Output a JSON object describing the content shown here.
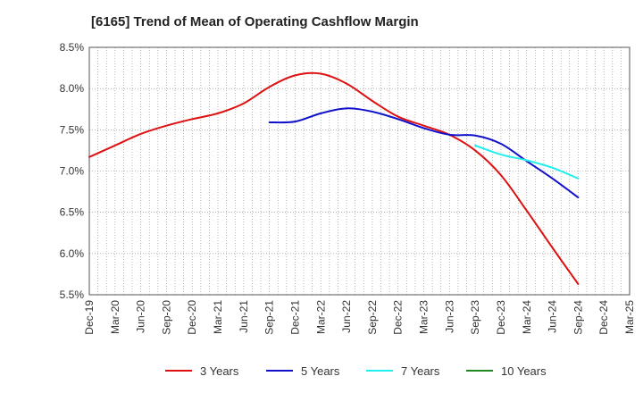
{
  "chart_data": {
    "type": "line",
    "title": "[6165]  Trend of Mean of Operating Cashflow Margin",
    "xlabel": "",
    "ylabel": "",
    "x": [
      "Dec-19",
      "Mar-20",
      "Jun-20",
      "Sep-20",
      "Dec-20",
      "Mar-21",
      "Jun-21",
      "Sep-21",
      "Dec-21",
      "Mar-22",
      "Jun-22",
      "Sep-22",
      "Dec-22",
      "Mar-23",
      "Jun-23",
      "Sep-23",
      "Dec-23",
      "Mar-24",
      "Jun-24",
      "Sep-24",
      "Dec-24",
      "Mar-25"
    ],
    "y_ticks": [
      "8.5%",
      "8.0%",
      "7.5%",
      "7.0%",
      "6.5%",
      "6.0%",
      "5.5%"
    ],
    "ylim": [
      5.5,
      8.5
    ],
    "grid": true,
    "legend_position": "bottom",
    "series": [
      {
        "name": "3 Years",
        "color": "#dd1111",
        "values": [
          7.17,
          7.31,
          7.45,
          7.55,
          7.63,
          7.7,
          7.82,
          8.02,
          8.16,
          8.18,
          8.06,
          7.85,
          7.66,
          7.55,
          7.44,
          7.25,
          6.95,
          6.52,
          6.07,
          5.63,
          null,
          null
        ]
      },
      {
        "name": "5 Years",
        "color": "#1111cc",
        "values": [
          null,
          null,
          null,
          null,
          null,
          null,
          null,
          7.59,
          7.6,
          7.7,
          7.76,
          7.72,
          7.63,
          7.52,
          7.44,
          7.43,
          7.33,
          7.12,
          6.91,
          6.68,
          null,
          null
        ]
      },
      {
        "name": "7 Years",
        "color": "#22eeee",
        "values": [
          null,
          null,
          null,
          null,
          null,
          null,
          null,
          null,
          null,
          null,
          null,
          null,
          null,
          null,
          null,
          7.31,
          7.2,
          7.13,
          7.04,
          6.91,
          null,
          null
        ]
      },
      {
        "name": "10 Years",
        "color": "#228822",
        "values": [
          null,
          null,
          null,
          null,
          null,
          null,
          null,
          null,
          null,
          null,
          null,
          null,
          null,
          null,
          null,
          null,
          null,
          null,
          null,
          null,
          null,
          null
        ]
      }
    ]
  }
}
